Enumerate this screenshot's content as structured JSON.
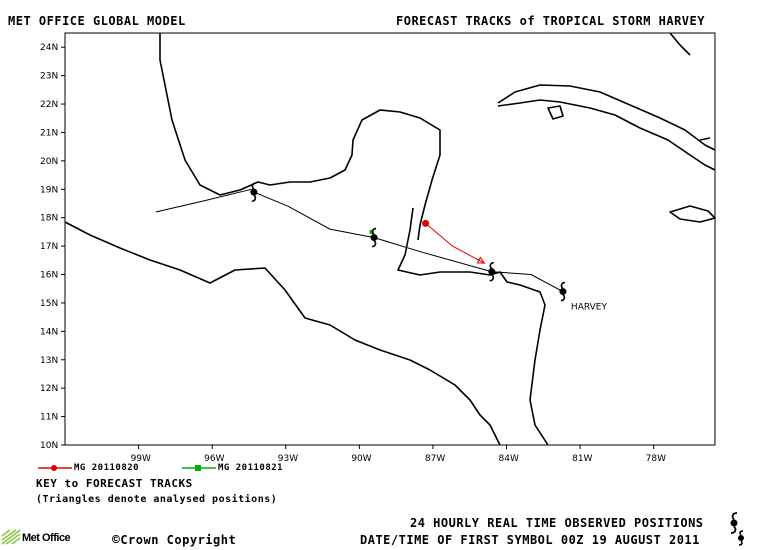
{
  "header": {
    "left_title": "MET OFFICE GLOBAL MODEL",
    "right_title": "FORECAST TRACKS of TROPICAL STORM HARVEY"
  },
  "axes": {
    "lat_labels": [
      "24N",
      "23N",
      "22N",
      "21N",
      "20N",
      "19N",
      "18N",
      "17N",
      "16N",
      "15N",
      "14N",
      "13N",
      "12N",
      "11N",
      "10N"
    ],
    "lon_labels": [
      "99W",
      "96W",
      "93W",
      "90W",
      "87W",
      "84W",
      "81W",
      "78W"
    ]
  },
  "storm_label": "HARVEY",
  "legend": {
    "entries": [
      {
        "label": "MG 20110820",
        "color": "#e00000"
      },
      {
        "label": "MG 20110821",
        "color": "#00b000"
      }
    ],
    "key_title": "KEY to FORECAST TRACKS",
    "key_note": "(Triangles denote analysed positions)"
  },
  "footer": {
    "logo_text": "Met Office",
    "copyright": "Crown Copyright",
    "observed_label": "24 HOURLY REAL TIME OBSERVED POSITIONS",
    "datetime_label": "DATE/TIME OF FIRST SYMBOL 00Z 19 AUGUST 2011"
  },
  "tracks": {
    "observed": [
      [
        -94.3,
        18.9
      ],
      [
        -92.9,
        18.4
      ],
      [
        -91.2,
        17.6
      ],
      [
        -89.4,
        17.3
      ],
      [
        -87.5,
        16.8
      ],
      [
        -84.6,
        16.1
      ],
      [
        -83.0,
        16.0
      ],
      [
        -81.7,
        15.4
      ]
    ],
    "observed_extra": [
      [
        -98.3,
        18.2
      ],
      [
        -96.3,
        18.6
      ],
      [
        -94.4,
        19.0
      ]
    ],
    "red_forecast": [
      [
        -87.3,
        17.8
      ],
      [
        -86.2,
        17.0
      ],
      [
        -84.9,
        16.4
      ]
    ],
    "green_point": [
      -89.5,
      17.5
    ]
  },
  "colors": {
    "red_track": "#e00000",
    "green_track": "#00b000",
    "land": "#000000",
    "logo_green": "#8dc63f"
  }
}
